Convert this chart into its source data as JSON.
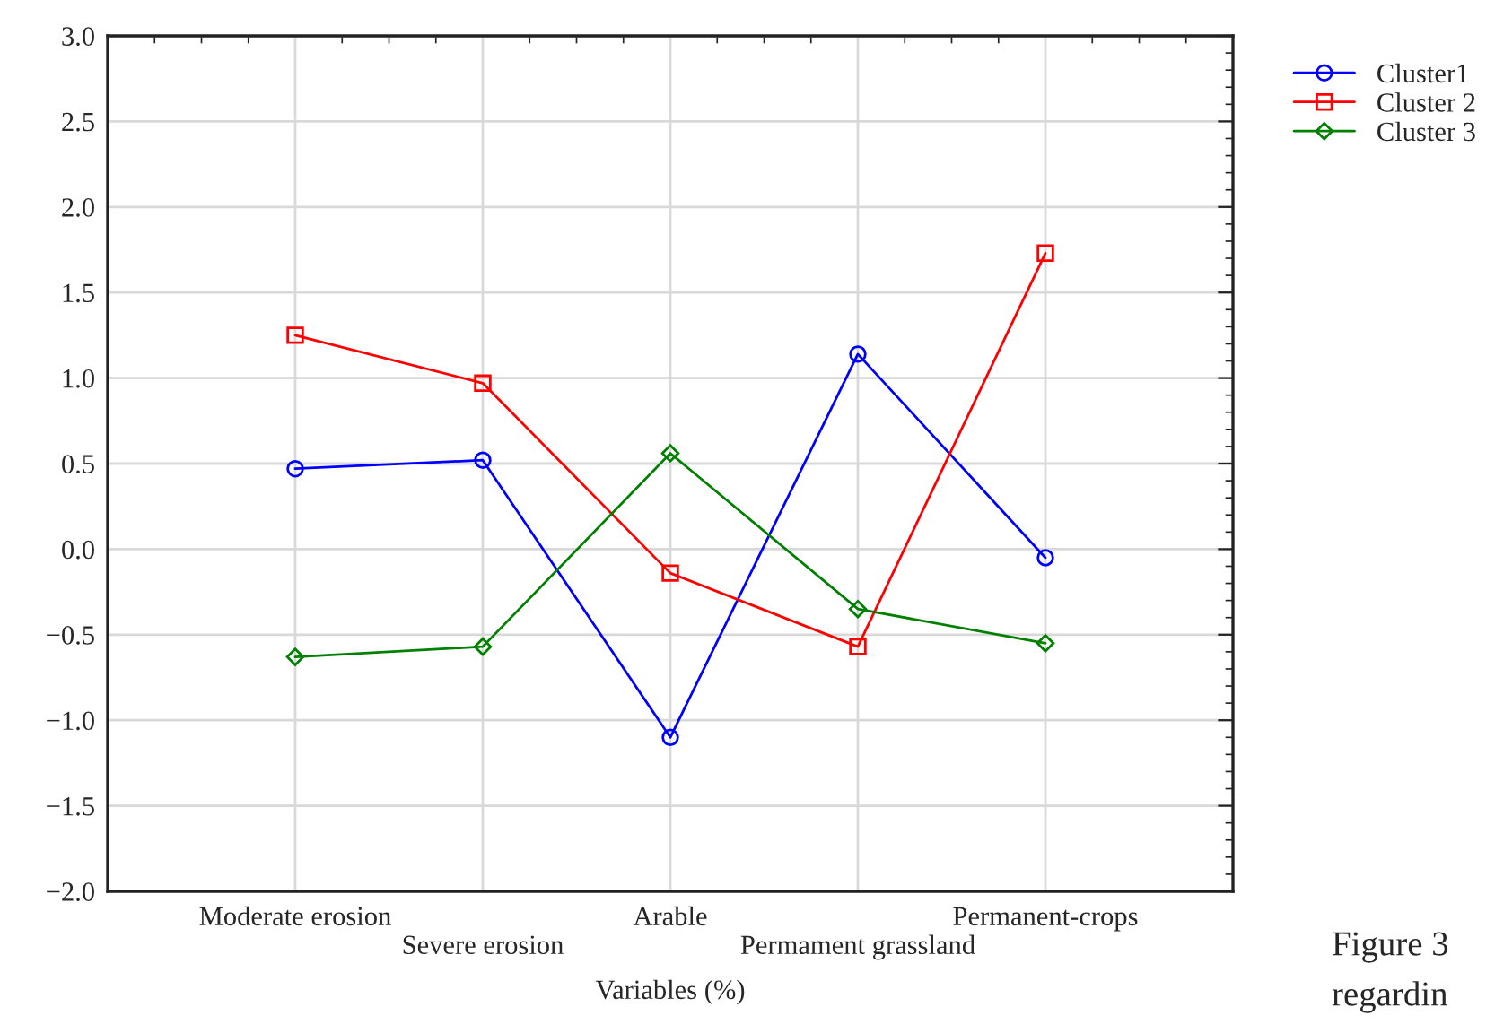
{
  "chart_data": {
    "type": "line",
    "xlabel": "Variables (%)",
    "categories": [
      "Moderate erosion",
      "Severe erosion",
      "Arable",
      "Permament grassland",
      "Permanent-crops"
    ],
    "series": [
      {
        "name": "Cluster1",
        "color": "#0000ff",
        "marker": "circle",
        "values": [
          0.47,
          0.52,
          -1.1,
          1.14,
          -0.05
        ]
      },
      {
        "name": "Cluster 2",
        "color": "#ff0000",
        "marker": "square",
        "values": [
          1.25,
          0.97,
          -0.14,
          -0.57,
          1.73
        ]
      },
      {
        "name": "Cluster 3",
        "color": "#008000",
        "marker": "diamond",
        "values": [
          -0.63,
          -0.57,
          0.56,
          -0.35,
          -0.55
        ]
      }
    ],
    "ylim": [
      -2.0,
      3.0
    ],
    "yticks": [
      {
        "value": -2.0,
        "label": "−2.0"
      },
      {
        "value": -1.5,
        "label": "−1.5"
      },
      {
        "value": -1.0,
        "label": "−1.0"
      },
      {
        "value": -0.5,
        "label": "−0.5"
      },
      {
        "value": 0.0,
        "label": "0.0"
      },
      {
        "value": 0.5,
        "label": "0.5"
      },
      {
        "value": 1.0,
        "label": "1.0"
      },
      {
        "value": 1.5,
        "label": "1.5"
      },
      {
        "value": 2.0,
        "label": "2.0"
      },
      {
        "value": 2.5,
        "label": "2.5"
      },
      {
        "value": 3.0,
        "label": "3.0"
      }
    ],
    "grid": true,
    "legend": "top right",
    "line_style": "solid",
    "annotations": [
      "Figure 3",
      "regardin"
    ]
  }
}
